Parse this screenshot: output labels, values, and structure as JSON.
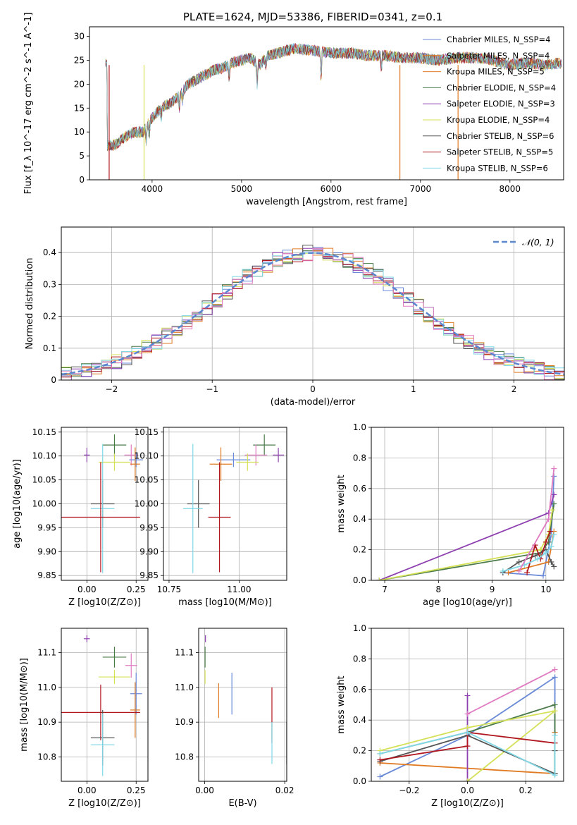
{
  "title": "PLATE=1624, MJD=53386, FIBERID=0341, z=0.1",
  "colors": {
    "blue": "#6a8ad8",
    "orange": "#e07b24",
    "dgreen": "#4a7a4a",
    "purple": "#8e3fb0",
    "yellow": "#d4e157",
    "dgray": "#555555",
    "red": "#b0171f",
    "cyan": "#80d8e6",
    "pink": "#e07ac0"
  },
  "chart_data": [
    {
      "id": "spectrum",
      "type": "line",
      "xlabel": "wavelength [Angstrom, rest frame]",
      "ylabel": "Flux [f_λ 10^-17 erg cm^-2 s^-1 A^-1]",
      "xlim": [
        3300,
        8600
      ],
      "ylim": [
        0,
        32
      ],
      "xticks": [
        4000,
        5000,
        6000,
        7000,
        8000
      ],
      "yticks": [
        0,
        5,
        10,
        15,
        20,
        25,
        30
      ],
      "grid": false,
      "legend_position": "right",
      "continuum": [
        [
          3500,
          7
        ],
        [
          3600,
          7.5
        ],
        [
          3700,
          9
        ],
        [
          3800,
          10
        ],
        [
          3900,
          10
        ],
        [
          4000,
          13
        ],
        [
          4100,
          15
        ],
        [
          4200,
          16
        ],
        [
          4300,
          17.5
        ],
        [
          4400,
          20
        ],
        [
          4500,
          21
        ],
        [
          4600,
          22
        ],
        [
          4700,
          23
        ],
        [
          4800,
          23.5
        ],
        [
          4900,
          24.5
        ],
        [
          5000,
          25
        ],
        [
          5100,
          25.5
        ],
        [
          5200,
          24
        ],
        [
          5300,
          26
        ],
        [
          5400,
          26.5
        ],
        [
          5500,
          27
        ],
        [
          5600,
          27.5
        ],
        [
          5800,
          27
        ],
        [
          6000,
          26.5
        ],
        [
          6200,
          26.5
        ],
        [
          6400,
          26
        ],
        [
          6600,
          26
        ],
        [
          6800,
          25.5
        ],
        [
          7000,
          25.5
        ],
        [
          7200,
          25
        ],
        [
          7400,
          25.5
        ],
        [
          7600,
          25.5
        ],
        [
          7800,
          25
        ],
        [
          8000,
          24
        ],
        [
          8200,
          24.5
        ],
        [
          8400,
          24
        ],
        [
          8600,
          24.5
        ]
      ],
      "series": [
        {
          "name": "Chabrier MILES, N_SSP=4",
          "color": "blue"
        },
        {
          "name": "Salpeter MILES, N_SSP=4",
          "color": "orange"
        },
        {
          "name": "Kroupa MILES, N_SSP=5",
          "color": "orange"
        },
        {
          "name": "Chabrier ELODIE, N_SSP=4",
          "color": "dgreen"
        },
        {
          "name": "Salpeter ELODIE, N_SSP=3",
          "color": "purple"
        },
        {
          "name": "Kroupa ELODIE, N_SSP=4",
          "color": "yellow"
        },
        {
          "name": "Chabrier STELIB, N_SSP=6",
          "color": "dgray"
        },
        {
          "name": "Salpeter STELIB, N_SSP=5",
          "color": "red"
        },
        {
          "name": "Kroupa STELIB, N_SSP=6",
          "color": "cyan"
        }
      ]
    },
    {
      "id": "residuals",
      "type": "line",
      "xlabel": "(data-model)/error",
      "ylabel": "Normed distribution",
      "xlim": [
        -2.5,
        2.5
      ],
      "ylim": [
        0,
        0.48
      ],
      "xticks": [
        -2,
        -1,
        0,
        1,
        2
      ],
      "yticks": [
        0.0,
        0.1,
        0.2,
        0.3,
        0.4
      ],
      "grid": true,
      "legend_position": "top-right",
      "gaussian_label": "𝒩(0, 1)",
      "histogram_colors": [
        "blue",
        "orange",
        "dgreen",
        "purple",
        "yellow",
        "dgray",
        "red",
        "cyan",
        "pink"
      ]
    },
    {
      "id": "age_vs_Z",
      "type": "scatter",
      "xlabel": "Z [log10(Z/Z⊙)]",
      "ylabel": "age [log10(age/yr)]",
      "xlim": [
        -0.13,
        0.31
      ],
      "ylim": [
        9.84,
        10.16
      ],
      "xticks": [
        0.0,
        0.25
      ],
      "xticklabels": [
        "0.00",
        "0.25"
      ],
      "yticks": [
        9.85,
        9.9,
        9.95,
        10.0,
        10.05,
        10.1,
        10.15
      ],
      "yticklabels": [
        "9.85",
        "9.90",
        "9.95",
        "10.00",
        "10.05",
        "10.10",
        "10.15"
      ],
      "grid": true,
      "points": [
        {
          "color": "dgreen",
          "x": 0.14,
          "xe": 0.06,
          "y": 10.123,
          "ye": 0.022
        },
        {
          "color": "purple",
          "x": 0.0,
          "xe": 0.015,
          "y": 10.102,
          "ye": 0.015
        },
        {
          "color": "pink",
          "x": 0.225,
          "xe": 0.035,
          "y": 10.102,
          "ye": 0.022
        },
        {
          "color": "blue",
          "x": 0.25,
          "xe": 0.035,
          "y": 10.092,
          "ye": 0.015
        },
        {
          "color": "yellow",
          "x": 0.14,
          "xe": 0.08,
          "y": 10.087,
          "ye": 0.018
        },
        {
          "color": "orange",
          "x": 0.245,
          "xe": 0.025,
          "y": 10.083,
          "ye": 0.035
        },
        {
          "color": "dgray",
          "x": 0.08,
          "xe": 0.06,
          "y": 10.0,
          "ye": 0.05
        },
        {
          "color": "cyan",
          "x": 0.08,
          "xe": 0.06,
          "y": 9.99,
          "ye": 0.135
        },
        {
          "color": "red",
          "x": 0.07,
          "xe": 0.2,
          "y": 9.972,
          "ye": 0.115
        }
      ]
    },
    {
      "id": "age_vs_mass",
      "type": "scatter",
      "xlabel": "mass [log10(M/M⊙)]",
      "ylabel": "",
      "xlim": [
        10.73,
        11.17
      ],
      "ylim": [
        9.84,
        10.16
      ],
      "xticks": [
        10.75,
        11.0
      ],
      "xticklabels": [
        "10.75",
        "11.00"
      ],
      "yticks": [
        9.85,
        9.9,
        9.95,
        10.0,
        10.05,
        10.1,
        10.15
      ],
      "yticklabels": [
        "9.85",
        "9.90",
        "9.95",
        "10.00",
        "10.05",
        "10.10",
        "10.15"
      ],
      "grid": true,
      "points": [
        {
          "color": "dgreen",
          "x": 11.09,
          "xe": 0.04,
          "y": 10.123,
          "ye": 0.022
        },
        {
          "color": "purple",
          "x": 11.14,
          "xe": 0.02,
          "y": 10.102,
          "ye": 0.015
        },
        {
          "color": "pink",
          "x": 11.06,
          "xe": 0.04,
          "y": 10.102,
          "ye": 0.022
        },
        {
          "color": "blue",
          "x": 10.98,
          "xe": 0.06,
          "y": 10.092,
          "ye": 0.015
        },
        {
          "color": "yellow",
          "x": 11.03,
          "xe": 0.04,
          "y": 10.087,
          "ye": 0.018
        },
        {
          "color": "orange",
          "x": 10.935,
          "xe": 0.04,
          "y": 10.083,
          "ye": 0.035
        },
        {
          "color": "dgray",
          "x": 10.855,
          "xe": 0.04,
          "y": 10.0,
          "ye": 0.05
        },
        {
          "color": "cyan",
          "x": 10.835,
          "xe": 0.035,
          "y": 9.99,
          "ye": 0.135
        },
        {
          "color": "red",
          "x": 10.93,
          "xe": 0.04,
          "y": 9.972,
          "ye": 0.115
        }
      ]
    },
    {
      "id": "weight_vs_age",
      "type": "line",
      "xlabel": "age [log10(age/yr)]",
      "ylabel": "mass weight",
      "xlim": [
        6.75,
        10.33
      ],
      "ylim": [
        0,
        1.0
      ],
      "xticks": [
        7,
        8,
        9,
        10
      ],
      "yticks": [
        0.0,
        0.2,
        0.4,
        0.6,
        0.8,
        1.0
      ],
      "yticklabels": [
        "0.0",
        "0.2",
        "0.4",
        "0.6",
        "0.8",
        "1.0"
      ],
      "grid": true,
      "series": [
        {
          "color": "blue",
          "x": [
            9.2,
            9.95,
            10.1,
            10.15
          ],
          "y": [
            0.05,
            0.03,
            0.3,
            0.68
          ]
        },
        {
          "color": "orange",
          "x": [
            9.3,
            10.05,
            10.15
          ],
          "y": [
            0.05,
            0.12,
            0.32
          ]
        },
        {
          "color": "dgreen",
          "x": [
            6.9,
            9.9,
            10.05,
            10.15
          ],
          "y": [
            0.0,
            0.18,
            0.25,
            0.5
          ]
        },
        {
          "color": "purple",
          "x": [
            6.9,
            10.05,
            10.15
          ],
          "y": [
            0.0,
            0.44,
            0.56
          ]
        },
        {
          "color": "yellow",
          "x": [
            6.9,
            9.9,
            10.05,
            10.12
          ],
          "y": [
            0.0,
            0.2,
            0.3,
            0.46
          ]
        },
        {
          "color": "dgray",
          "x": [
            9.2,
            9.5,
            9.8,
            10.0,
            10.1,
            10.15
          ],
          "y": [
            0.05,
            0.12,
            0.16,
            0.2,
            0.12,
            0.09
          ]
        },
        {
          "color": "red",
          "x": [
            9.65,
            9.8,
            9.9,
            10.0,
            10.08
          ],
          "y": [
            0.05,
            0.23,
            0.14,
            0.25,
            0.32
          ]
        },
        {
          "color": "cyan",
          "x": [
            9.2,
            9.6,
            9.85,
            10.0,
            10.1,
            10.15
          ],
          "y": [
            0.06,
            0.1,
            0.14,
            0.18,
            0.22,
            0.3
          ]
        },
        {
          "color": "pink",
          "x": [
            9.5,
            10.05,
            10.15
          ],
          "y": [
            0.06,
            0.4,
            0.73
          ]
        }
      ]
    },
    {
      "id": "mass_vs_Z",
      "type": "scatter",
      "xlabel": "Z [log10(Z/Z⊙)]",
      "ylabel": "mass [log10(M/M⊙)]",
      "xlim": [
        -0.13,
        0.31
      ],
      "ylim": [
        10.73,
        11.17
      ],
      "xticks": [
        0.0,
        0.25
      ],
      "xticklabels": [
        "0.00",
        "0.25"
      ],
      "yticks": [
        10.8,
        10.9,
        11.0,
        11.1
      ],
      "yticklabels": [
        "10.8",
        "10.9",
        "11.0",
        "11.1"
      ],
      "grid": true,
      "points": [
        {
          "color": "purple",
          "x": 0.0,
          "xe": 0.015,
          "y": 11.14,
          "ye": 0.01
        },
        {
          "color": "dgreen",
          "x": 0.14,
          "xe": 0.06,
          "y": 11.087,
          "ye": 0.03
        },
        {
          "color": "pink",
          "x": 0.225,
          "xe": 0.03,
          "y": 11.063,
          "ye": 0.035
        },
        {
          "color": "yellow",
          "x": 0.14,
          "xe": 0.08,
          "y": 11.03,
          "ye": 0.02
        },
        {
          "color": "blue",
          "x": 0.25,
          "xe": 0.03,
          "y": 10.982,
          "ye": 0.06
        },
        {
          "color": "orange",
          "x": 0.245,
          "xe": 0.025,
          "y": 10.935,
          "ye": 0.08
        },
        {
          "color": "red",
          "x": 0.07,
          "xe": 0.2,
          "y": 10.928,
          "ye": 0.08
        },
        {
          "color": "dgray",
          "x": 0.08,
          "xe": 0.06,
          "y": 10.855,
          "ye": 0.08
        },
        {
          "color": "cyan",
          "x": 0.08,
          "xe": 0.06,
          "y": 10.835,
          "ye": 0.09
        }
      ]
    },
    {
      "id": "mass_vs_EBV",
      "type": "scatter",
      "xlabel": "E(B-V)",
      "ylabel": "",
      "xlim": [
        -0.0015,
        0.0205
      ],
      "ylim": [
        10.73,
        11.17
      ],
      "xticks": [
        0.0,
        0.02
      ],
      "xticklabels": [
        "0.00",
        "0.02"
      ],
      "yticks": [
        10.8,
        10.9,
        11.0,
        11.1
      ],
      "yticklabels": [
        "10.8",
        "10.9",
        "11.0",
        "11.1"
      ],
      "grid": true,
      "points": [
        {
          "color": "purple",
          "x": 0.0002,
          "y": 11.14,
          "ye": 0.01
        },
        {
          "color": "dgreen",
          "x": 0.0001,
          "y": 11.087,
          "ye": 0.03
        },
        {
          "color": "yellow",
          "x": 0.0001,
          "y": 11.03,
          "ye": 0.02
        },
        {
          "color": "orange",
          "x": 0.0035,
          "y": 10.962,
          "ye": 0.05
        },
        {
          "color": "blue",
          "x": 0.0068,
          "y": 10.982,
          "ye": 0.06
        },
        {
          "color": "red",
          "x": 0.0168,
          "y": 10.92,
          "ye": 0.08
        },
        {
          "color": "cyan",
          "x": 0.0168,
          "y": 10.84,
          "ye": 0.06
        },
        {
          "color": "dgray",
          "x": 0.0205,
          "y": 10.84,
          "ye": 0.06
        }
      ]
    },
    {
      "id": "weight_vs_Z",
      "type": "line",
      "xlabel": "Z [log10(Z/Z⊙)]",
      "ylabel": "mass weight",
      "xlim": [
        -0.33,
        0.33
      ],
      "ylim": [
        0,
        1.0
      ],
      "xticks": [
        -0.2,
        0.0,
        0.2
      ],
      "xticklabels": [
        "−0.2",
        "0.0",
        "0.2"
      ],
      "yticks": [
        0.0,
        0.2,
        0.4,
        0.6,
        0.8,
        1.0
      ],
      "yticklabels": [
        "0.0",
        "0.2",
        "0.4",
        "0.6",
        "0.8",
        "1.0"
      ],
      "grid": true,
      "series": [
        {
          "color": "blue",
          "x": [
            -0.3,
            0.0,
            0.3,
            0.3
          ],
          "y": [
            0.03,
            0.3,
            0.68,
            0.05
          ]
        },
        {
          "color": "orange",
          "x": [
            -0.3,
            0.3,
            0.3
          ],
          "y": [
            0.12,
            0.05,
            0.32
          ]
        },
        {
          "color": "dgreen",
          "x": [
            -0.3,
            0.0,
            0.3,
            0.3
          ],
          "y": [
            0.18,
            0.32,
            0.5,
            0.05
          ]
        },
        {
          "color": "purple",
          "x": [
            0.0,
            0.0
          ],
          "y": [
            0.0,
            0.56
          ]
        },
        {
          "color": "yellow",
          "x": [
            -0.3,
            0.0,
            0.3,
            0.0
          ],
          "y": [
            0.2,
            0.35,
            0.46,
            0.0
          ]
        },
        {
          "color": "dgray",
          "x": [
            -0.3,
            0.0,
            0.3,
            0.3
          ],
          "y": [
            0.13,
            0.3,
            0.05,
            0.2
          ]
        },
        {
          "color": "red",
          "x": [
            -0.3,
            0.0,
            0.0,
            0.3
          ],
          "y": [
            0.14,
            0.23,
            0.32,
            0.25
          ]
        },
        {
          "color": "cyan",
          "x": [
            -0.3,
            0.0,
            0.3,
            0.3
          ],
          "y": [
            0.18,
            0.32,
            0.04,
            0.3
          ]
        },
        {
          "color": "pink",
          "x": [
            0.0,
            0.3
          ],
          "y": [
            0.44,
            0.73
          ]
        }
      ]
    }
  ]
}
